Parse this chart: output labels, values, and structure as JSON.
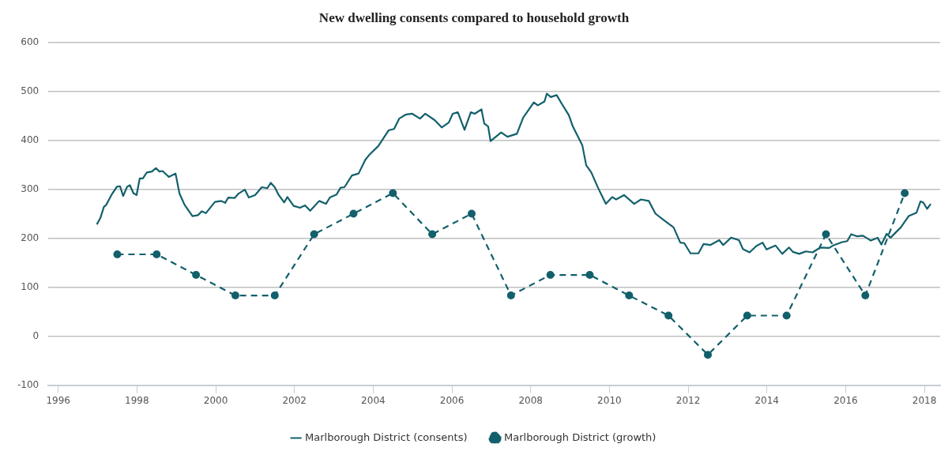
{
  "chart_data": {
    "type": "line",
    "title": "New dwelling consents compared to household growth",
    "xlim": [
      1995.75,
      2018.4
    ],
    "xticks": [
      1996,
      1998,
      2000,
      2002,
      2004,
      2006,
      2008,
      2010,
      2012,
      2014,
      2016,
      2018
    ],
    "ylim": [
      -100,
      600
    ],
    "yticks": [
      -100,
      0,
      100,
      200,
      300,
      400,
      500,
      600
    ],
    "grid": "y",
    "legend": "bottom",
    "series": [
      {
        "name": "Marlborough District (consents)",
        "color": "#12606b",
        "marker": "none",
        "line_style": "solid",
        "x": [
          1996.98,
          1997.07,
          1997.16,
          1997.22,
          1997.35,
          1997.49,
          1997.57,
          1997.65,
          1997.75,
          1997.82,
          1997.91,
          1997.99,
          1998.07,
          1998.15,
          1998.25,
          1998.38,
          1998.48,
          1998.57,
          1998.65,
          1998.81,
          1998.98,
          1999.08,
          1999.21,
          1999.41,
          1999.55,
          1999.65,
          1999.75,
          1999.98,
          2000.14,
          2000.24,
          2000.32,
          2000.48,
          2000.58,
          2000.74,
          2000.84,
          2001.0,
          2001.17,
          2001.31,
          2001.4,
          2001.5,
          2001.6,
          2001.74,
          2001.82,
          2001.98,
          2002.14,
          2002.27,
          2002.4,
          2002.63,
          2002.8,
          2002.9,
          2003.07,
          2003.17,
          2003.27,
          2003.46,
          2003.63,
          2003.8,
          2003.9,
          2004.13,
          2004.39,
          2004.53,
          2004.66,
          2004.82,
          2004.99,
          2005.19,
          2005.32,
          2005.56,
          2005.74,
          2005.92,
          2006.02,
          2006.15,
          2006.32,
          2006.48,
          2006.58,
          2006.75,
          2006.82,
          2006.92,
          2006.98,
          2007.25,
          2007.41,
          2007.65,
          2007.81,
          2008.08,
          2008.18,
          2008.35,
          2008.41,
          2008.51,
          2008.66,
          2008.77,
          2008.97,
          2009.07,
          2009.31,
          2009.41,
          2009.54,
          2009.71,
          2009.91,
          2010.07,
          2010.17,
          2010.37,
          2010.63,
          2010.8,
          2011.0,
          2011.17,
          2011.36,
          2011.63,
          2011.8,
          2011.9,
          2012.06,
          2012.26,
          2012.39,
          2012.56,
          2012.79,
          2012.89,
          2013.09,
          2013.29,
          2013.39,
          2013.56,
          2013.73,
          2013.89,
          2013.99,
          2014.22,
          2014.39,
          2014.56,
          2014.66,
          2014.82,
          2014.99,
          2015.16,
          2015.36,
          2015.58,
          2015.68,
          2015.91,
          2016.04,
          2016.14,
          2016.28,
          2016.44,
          2016.64,
          2016.81,
          2016.91,
          2017.04,
          2017.14,
          2017.4,
          2017.6,
          2017.8,
          2017.9,
          2017.97,
          2018.07,
          2018.16
        ],
        "values": [
          228,
          241,
          264,
          268,
          288,
          305,
          306,
          286,
          305,
          308,
          292,
          288,
          322,
          322,
          334,
          336,
          343,
          336,
          337,
          325,
          332,
          291,
          268,
          245,
          247,
          255,
          251,
          274,
          276,
          272,
          283,
          282,
          291,
          299,
          283,
          288,
          304,
          302,
          313,
          304,
          288,
          273,
          284,
          266,
          262,
          267,
          256,
          276,
          270,
          283,
          289,
          303,
          304,
          328,
          332,
          360,
          370,
          388,
          420,
          423,
          444,
          452,
          454,
          444,
          454,
          441,
          426,
          436,
          454,
          457,
          421,
          457,
          454,
          463,
          434,
          428,
          398,
          416,
          407,
          413,
          446,
          477,
          471,
          479,
          495,
          488,
          492,
          477,
          451,
          428,
          390,
          349,
          334,
          303,
          270,
          284,
          279,
          288,
          270,
          279,
          276,
          250,
          238,
          222,
          191,
          190,
          169,
          169,
          188,
          186,
          196,
          186,
          201,
          196,
          178,
          171,
          184,
          191,
          177,
          185,
          168,
          181,
          172,
          168,
          173,
          171,
          181,
          180,
          185,
          192,
          194,
          208,
          204,
          205,
          195,
          201,
          187,
          209,
          201,
          222,
          245,
          252,
          275,
          273,
          260,
          270
        ]
      },
      {
        "name": "Marlborough District (growth)",
        "color": "#12606b",
        "marker": "circle",
        "line_style": "dashed",
        "x": [
          1997.5,
          1998.5,
          1999.5,
          2000.5,
          2001.5,
          2002.5,
          2003.5,
          2004.5,
          2005.5,
          2006.5,
          2007.5,
          2008.5,
          2009.5,
          2010.5,
          2011.5,
          2012.5,
          2013.5,
          2014.5,
          2015.5,
          2016.5,
          2017.5
        ],
        "values": [
          167,
          167,
          125,
          83,
          83,
          208,
          250,
          292,
          208,
          250,
          83,
          125,
          125,
          83,
          42,
          -38,
          42,
          42,
          208,
          83,
          292
        ]
      }
    ]
  }
}
